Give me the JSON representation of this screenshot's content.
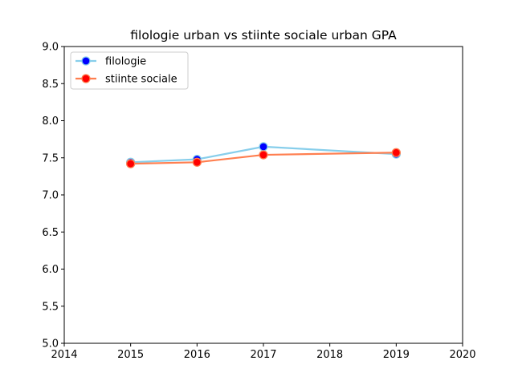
{
  "chart_data": {
    "type": "line",
    "title": "filologie urban vs stiinte sociale urban GPA",
    "xlabel": "",
    "ylabel": "",
    "xlim": [
      2014,
      2020
    ],
    "ylim": [
      5.0,
      9.0
    ],
    "xticks": [
      "2014",
      "2015",
      "2016",
      "2017",
      "2018",
      "2019",
      "2020"
    ],
    "yticks": [
      "5.0",
      "5.5",
      "6.0",
      "6.5",
      "7.0",
      "7.5",
      "8.0",
      "8.5",
      "9.0"
    ],
    "grid": false,
    "legend_position": "top-left",
    "series": [
      {
        "name": "filologie",
        "line_color": "#87ceeb",
        "marker_color": "#0000ff",
        "x": [
          2015,
          2016,
          2017,
          2019
        ],
        "y": [
          7.44,
          7.48,
          7.65,
          7.55
        ]
      },
      {
        "name": "stiinte sociale",
        "line_color": "#ff7f50",
        "marker_color": "#ff0000",
        "x": [
          2015,
          2016,
          2017,
          2019
        ],
        "y": [
          7.42,
          7.44,
          7.54,
          7.57
        ]
      }
    ]
  }
}
